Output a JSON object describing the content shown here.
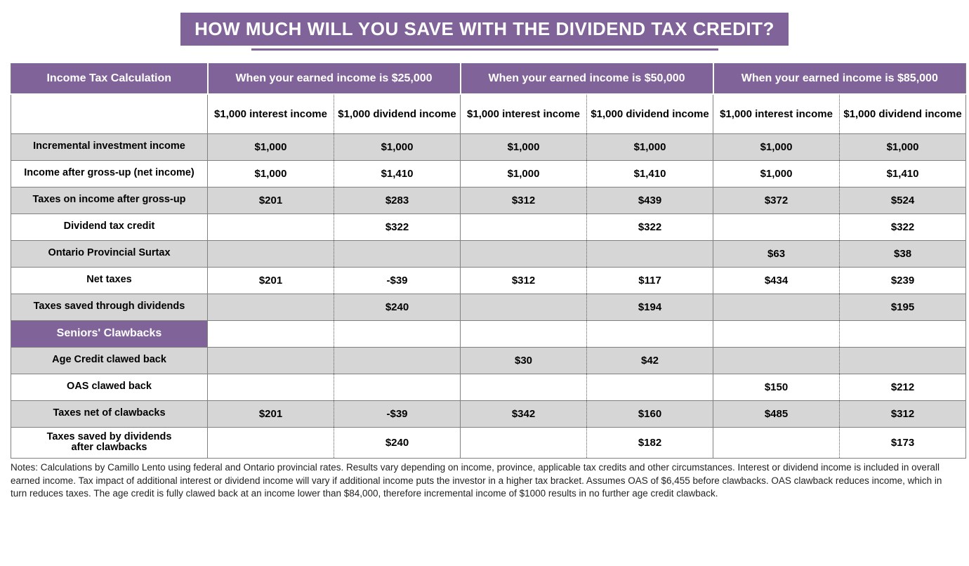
{
  "title": "HOW MUCH WILL YOU SAVE WITH THE DIVIDEND TAX CREDIT?",
  "colors": {
    "accent": "#806398",
    "shade": "#d6d6d6",
    "border": "#808080",
    "text": "#000000",
    "white": "#ffffff"
  },
  "header": {
    "corner": "Income Tax Calculation",
    "groups": [
      "When your earned income is $25,000",
      "When your earned income is $50,000",
      "When your earned income is $85,000"
    ],
    "subcolumns": [
      "$1,000 interest income",
      "$1,000 dividend income",
      "$1,000 interest income",
      "$1,000 dividend income",
      "$1,000 interest income",
      "$1,000 dividend income"
    ]
  },
  "rows": [
    {
      "label": "Incremental investment income",
      "shade": true,
      "v": [
        "$1,000",
        "$1,000",
        "$1,000",
        "$1,000",
        "$1,000",
        "$1,000"
      ]
    },
    {
      "label": "Income after gross-up (net income)",
      "shade": false,
      "v": [
        "$1,000",
        "$1,410",
        "$1,000",
        "$1,410",
        "$1,000",
        "$1,410"
      ]
    },
    {
      "label": "Taxes on income after gross-up",
      "shade": true,
      "v": [
        "$201",
        "$283",
        "$312",
        "$439",
        "$372",
        "$524"
      ]
    },
    {
      "label": "Dividend tax credit",
      "shade": false,
      "v": [
        "",
        "$322",
        "",
        "$322",
        "",
        "$322"
      ]
    },
    {
      "label": "Ontario Provincial Surtax",
      "shade": true,
      "v": [
        "",
        "",
        "",
        "",
        "$63",
        "$38"
      ]
    },
    {
      "label": "Net taxes",
      "shade": false,
      "v": [
        "$201",
        "-$39",
        "$312",
        "$117",
        "$434",
        "$239"
      ]
    },
    {
      "label": "Taxes saved through dividends",
      "shade": true,
      "v": [
        "",
        "$240",
        "",
        "$194",
        "",
        "$195"
      ]
    }
  ],
  "sectionHeader": "Seniors' Clawbacks",
  "rows2": [
    {
      "label": "Age Credit clawed back",
      "shade": true,
      "v": [
        "",
        "",
        "$30",
        "$42",
        "",
        ""
      ]
    },
    {
      "label": "OAS clawed back",
      "shade": false,
      "v": [
        "",
        "",
        "",
        "",
        "$150",
        "$212"
      ]
    },
    {
      "label": "Taxes net of clawbacks",
      "shade": true,
      "v": [
        "$201",
        "-$39",
        "$342",
        "$160",
        "$485",
        "$312"
      ]
    },
    {
      "label": "Taxes saved by dividends\nafter clawbacks",
      "shade": false,
      "v": [
        "",
        "$240",
        "",
        "$182",
        "",
        "$173"
      ]
    }
  ],
  "notes": "Notes: Calculations by Camillo Lento using federal and Ontario provincial rates. Results vary depending on income, province, applicable tax credits and other circumstances. Interest or dividend income is included in overall earned income. Tax impact of additional interest or dividend income will vary if additional income puts the investor in a higher tax bracket. Assumes OAS of $6,455 before clawbacks. OAS clawback reduces income, which in turn reduces taxes. The age credit is fully clawed back at an income lower than $84,000, therefore incremental income of $1000 results in no further age credit clawback."
}
